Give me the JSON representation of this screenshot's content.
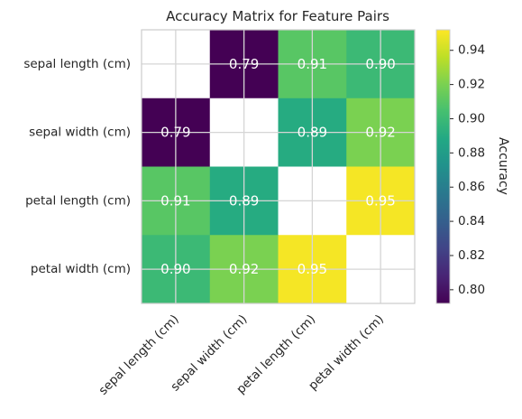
{
  "chart_data": {
    "type": "heatmap",
    "title": "Accuracy Matrix for Feature Pairs",
    "row_labels": [
      "sepal length (cm)",
      "sepal width (cm)",
      "petal length (cm)",
      "petal width (cm)"
    ],
    "col_labels": [
      "sepal length (cm)",
      "sepal width (cm)",
      "petal length (cm)",
      "petal width (cm)"
    ],
    "values": [
      [
        null,
        0.79,
        0.91,
        0.9
      ],
      [
        0.79,
        null,
        0.89,
        0.92
      ],
      [
        0.91,
        0.89,
        null,
        0.95
      ],
      [
        0.9,
        0.92,
        0.95,
        null
      ]
    ],
    "value_labels": [
      [
        "",
        "0.79",
        "0.91",
        "0.90"
      ],
      [
        "0.79",
        "",
        "0.89",
        "0.92"
      ],
      [
        "0.91",
        "0.89",
        "",
        "0.95"
      ],
      [
        "0.90",
        "0.92",
        "0.95",
        ""
      ]
    ],
    "colormap": "viridis",
    "colorbar": {
      "label": "Accuracy",
      "range": [
        0.792,
        0.952
      ],
      "ticks": [
        0.8,
        0.82,
        0.84,
        0.86,
        0.88,
        0.9,
        0.92,
        0.94
      ],
      "tick_labels": [
        "0.80",
        "0.82",
        "0.84",
        "0.86",
        "0.88",
        "0.90",
        "0.92",
        "0.94"
      ]
    },
    "grid": true
  }
}
